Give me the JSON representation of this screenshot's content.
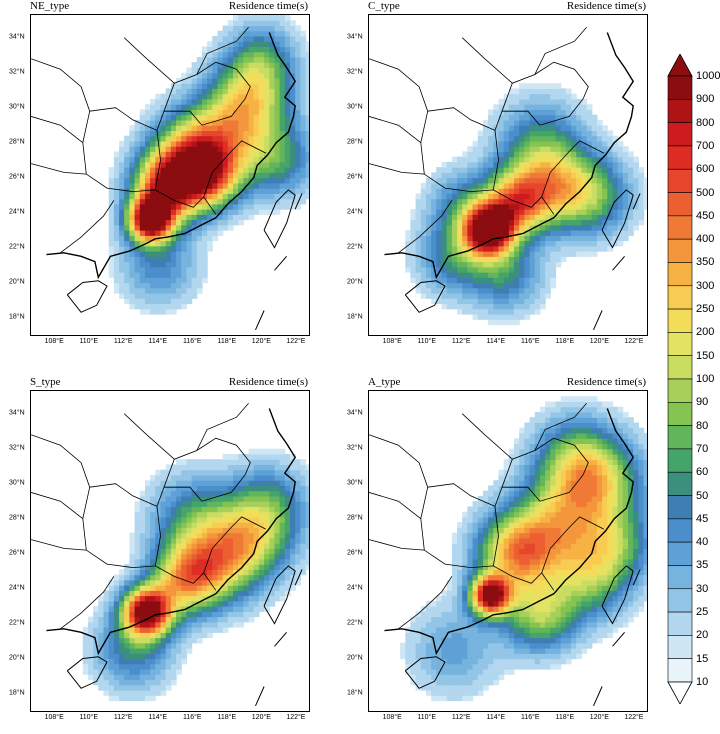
{
  "panels": [
    {
      "id": "ne",
      "title": "NE_type",
      "subtitle": "Residence time(s)"
    },
    {
      "id": "c",
      "title": "C_type",
      "subtitle": "Residence time(s)"
    },
    {
      "id": "s",
      "title": "S_type",
      "subtitle": "Residence time(s)"
    },
    {
      "id": "a",
      "title": "A_type",
      "subtitle": "Residence time(s)"
    }
  ],
  "axes": {
    "lat_ticks": [
      "34°N",
      "32°N",
      "30°N",
      "28°N",
      "26°N",
      "24°N",
      "22°N",
      "20°N",
      "18°N"
    ],
    "lon_ticks": [
      "108°E",
      "110°E",
      "112°E",
      "114°E",
      "116°E",
      "118°E",
      "120°E",
      "122°E"
    ]
  },
  "colorbar": {
    "labels": [
      "1000",
      "900",
      "800",
      "700",
      "600",
      "500",
      "450",
      "400",
      "350",
      "300",
      "250",
      "200",
      "150",
      "100",
      "90",
      "80",
      "70",
      "60",
      "50",
      "45",
      "40",
      "35",
      "30",
      "25",
      "20",
      "15",
      "10"
    ],
    "colors": [
      "#8b0d10",
      "#b01316",
      "#cc1c1f",
      "#dd2d25",
      "#e5462c",
      "#ec5f31",
      "#f07a35",
      "#f4963b",
      "#f7b244",
      "#f8cc52",
      "#f3dc5a",
      "#e4e263",
      "#c8dd62",
      "#a7d05a",
      "#86c452",
      "#62b55a",
      "#45a46a",
      "#3a8f7d",
      "#3f7eb3",
      "#4a8ecb",
      "#5da1d6",
      "#76b3de",
      "#93c5e6",
      "#b3d7ee",
      "#cfe6f5",
      "#e8f3fa"
    ],
    "top_color": "#8b0d10",
    "bottom_color": "#ffffff"
  }
}
